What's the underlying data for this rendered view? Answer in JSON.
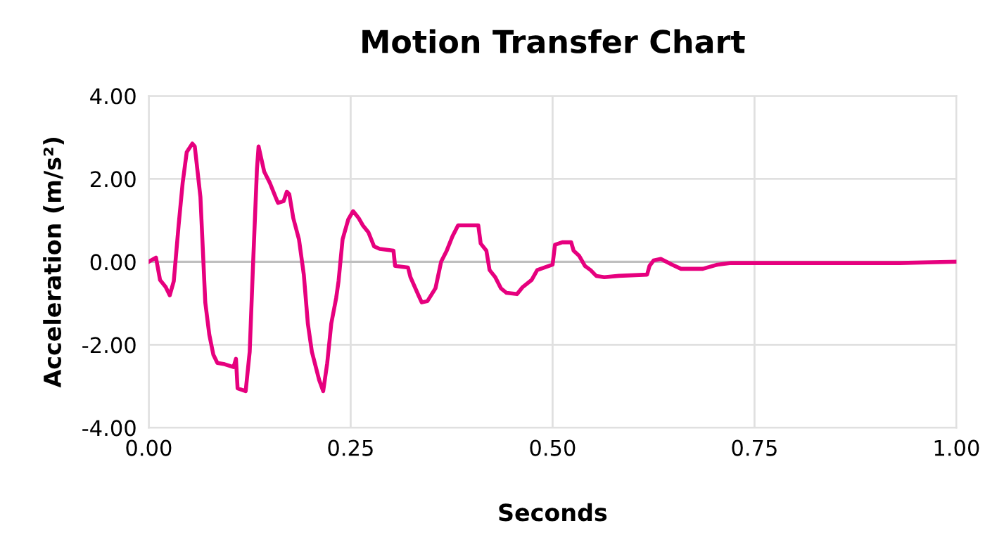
{
  "chart_data": {
    "type": "line",
    "title": "Motion Transfer Chart",
    "xlabel": "Seconds",
    "ylabel": "Acceleration (m/s²)",
    "xlim": [
      0,
      1
    ],
    "xticks": [
      {
        "value": 0,
        "label": "0.00"
      },
      {
        "value": 0.25,
        "label": "0.25"
      },
      {
        "value": 0.5,
        "label": "0.50"
      },
      {
        "value": 0.75,
        "label": "0.75"
      },
      {
        "value": 1,
        "label": "1.00"
      }
    ],
    "ylim": [
      -4,
      4
    ],
    "yticks": [
      {
        "value": -4,
        "label": "-4.00"
      },
      {
        "value": -2,
        "label": "-2.00"
      },
      {
        "value": 0,
        "label": "0.00"
      },
      {
        "value": 2,
        "label": "2.00"
      },
      {
        "value": 4,
        "label": "4.00"
      }
    ],
    "grid": true,
    "legend": false,
    "marker": "none",
    "line_style": "solid",
    "ref_lines": [
      {
        "axis": "y",
        "value": 0,
        "color": "#bfbfbf"
      }
    ],
    "series": [
      {
        "color": "#e6007e",
        "x": [
          0,
          0.009,
          0.014,
          0.021,
          0.026,
          0.031,
          0.037,
          0.042,
          0.047,
          0.054,
          0.057,
          0.064,
          0.07,
          0.075,
          0.08,
          0.085,
          0.094,
          0.105,
          0.108,
          0.11,
          0.12,
          0.125,
          0.129,
          0.134,
          0.136,
          0.143,
          0.15,
          0.157,
          0.16,
          0.167,
          0.171,
          0.174,
          0.179,
          0.186,
          0.192,
          0.197,
          0.202,
          0.211,
          0.216,
          0.221,
          0.226,
          0.232,
          0.235,
          0.24,
          0.247,
          0.253,
          0.26,
          0.265,
          0.272,
          0.279,
          0.286,
          0.303,
          0.305,
          0.321,
          0.324,
          0.334,
          0.338,
          0.345,
          0.355,
          0.362,
          0.369,
          0.376,
          0.383,
          0.408,
          0.411,
          0.418,
          0.422,
          0.429,
          0.436,
          0.443,
          0.456,
          0.463,
          0.474,
          0.481,
          0.5,
          0.503,
          0.512,
          0.523,
          0.526,
          0.533,
          0.54,
          0.547,
          0.554,
          0.564,
          0.582,
          0.617,
          0.62,
          0.625,
          0.634,
          0.648,
          0.659,
          0.686,
          0.704,
          0.721,
          0.739,
          0.774,
          0.861,
          0.93,
          1.0
        ],
        "values": [
          0,
          0.1,
          -0.44,
          -0.61,
          -0.81,
          -0.47,
          0.88,
          1.9,
          2.64,
          2.85,
          2.78,
          1.56,
          -0.98,
          -1.76,
          -2.24,
          -2.44,
          -2.47,
          -2.54,
          -2.34,
          -3.05,
          -3.12,
          -2.17,
          -0.14,
          2.24,
          2.78,
          2.17,
          1.9,
          1.56,
          1.42,
          1.46,
          1.69,
          1.63,
          1.05,
          0.54,
          -0.31,
          -1.49,
          -2.17,
          -2.85,
          -3.12,
          -2.44,
          -1.49,
          -0.88,
          -0.47,
          0.54,
          1.02,
          1.22,
          1.05,
          0.88,
          0.71,
          0.37,
          0.31,
          0.27,
          -0.1,
          -0.14,
          -0.37,
          -0.81,
          -0.98,
          -0.95,
          -0.64,
          0,
          0.27,
          0.61,
          0.88,
          0.88,
          0.44,
          0.27,
          -0.2,
          -0.37,
          -0.64,
          -0.75,
          -0.78,
          -0.61,
          -0.44,
          -0.2,
          -0.07,
          0.41,
          0.47,
          0.47,
          0.27,
          0.14,
          -0.1,
          -0.2,
          -0.34,
          -0.37,
          -0.34,
          -0.31,
          -0.1,
          0.03,
          0.07,
          -0.07,
          -0.17,
          -0.17,
          -0.07,
          -0.03,
          -0.03,
          -0.03,
          -0.03,
          -0.03,
          0
        ]
      }
    ]
  }
}
